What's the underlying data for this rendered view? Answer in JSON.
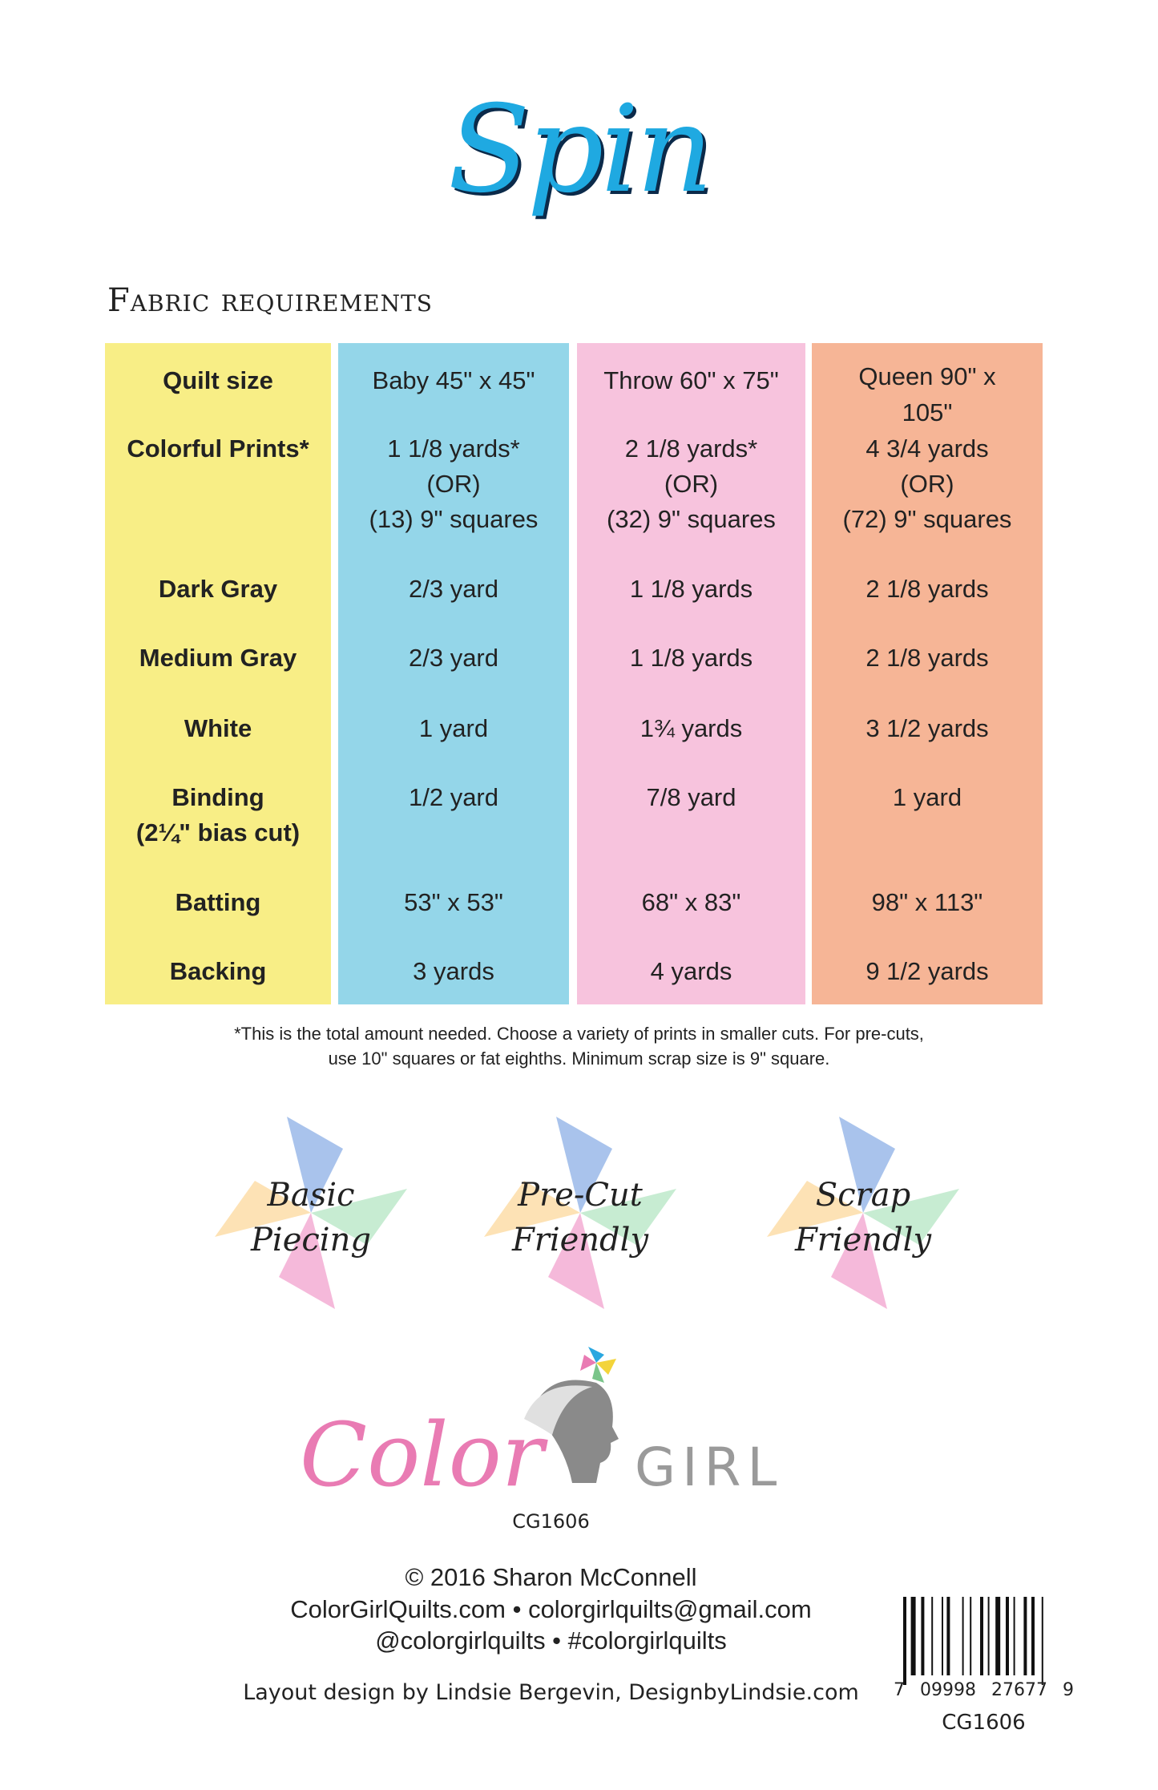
{
  "title": "Spin",
  "heading": "Fabric requirements",
  "colors": {
    "title": "#1fa9e1",
    "labels_col": "#f8ee86",
    "baby_col": "#94d6e9",
    "throw_col": "#f7c3dd",
    "queen_col": "#f6b596"
  },
  "table": {
    "labels": [
      "Quilt size",
      "Colorful Prints*",
      "Dark Gray",
      "Medium Gray",
      "White",
      "Binding",
      "(2¼\" bias cut)",
      "Batting",
      "Backing"
    ],
    "baby": [
      "Baby 45\" x 45\"",
      "1 1/8 yards*",
      "(OR)",
      "(13) 9\" squares",
      "2/3 yard",
      "2/3 yard",
      "1 yard",
      "1/2 yard",
      "53\" x 53\"",
      "3 yards"
    ],
    "throw": [
      "Throw 60\" x 75\"",
      "2 1/8 yards*",
      "(OR)",
      "(32) 9\" squares",
      "1 1/8 yards",
      "1 1/8 yards",
      "1¾ yards",
      "7/8 yard",
      "68\" x 83\"",
      "4 yards"
    ],
    "queen": [
      "Queen 90\" x",
      "105\"",
      "4 3/4 yards",
      "(OR)",
      "(72) 9\" squares",
      "2 1/8 yards",
      "2 1/8 yards",
      "3 1/2 yards",
      "1 yard",
      "98\" x 113\"",
      "9 1/2 yards"
    ]
  },
  "footnote": [
    "*This is the total amount needed. Choose a variety of prints in smaller cuts. For pre-cuts,",
    "use 10\" squares or fat eighths. Minimum scrap size is 9\" square."
  ],
  "badges": [
    [
      "Basic",
      "Piecing"
    ],
    [
      "Pre-Cut",
      "Friendly"
    ],
    [
      "Scrap",
      "Friendly"
    ]
  ],
  "logo": {
    "color": "Color",
    "girl": "GIRL",
    "code": "CG1606"
  },
  "footer": {
    "copyright": "© 2016 Sharon McConnell",
    "line2": "ColorGirlQuilts.com  •  colorgirlquilts@gmail.com",
    "line3": "@colorgirlquilts  •  #colorgirlquilts",
    "layout": "Layout design by Lindsie Bergevin, DesignbyLindsie.com"
  },
  "barcode": {
    "left": "7",
    "mid1": "09998",
    "mid2": "27677",
    "right": "9",
    "code": "CG1606"
  }
}
